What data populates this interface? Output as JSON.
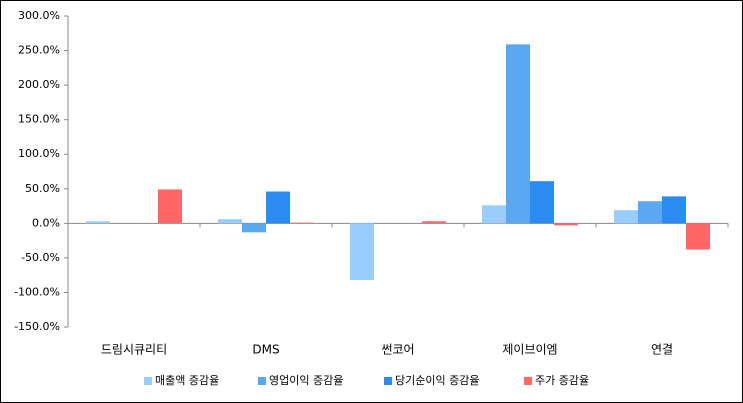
{
  "chart_data": {
    "type": "bar",
    "categories": [
      "드림시큐리티",
      "DMS",
      "썬코어",
      "제이브이엠",
      "연결"
    ],
    "series": [
      {
        "name": "매출액 증감율",
        "color": "#99ccff",
        "values": [
          3,
          6,
          -82,
          26,
          19
        ]
      },
      {
        "name": "영업이익 증감율",
        "color": "#5ba8f2",
        "values": [
          null,
          -13,
          null,
          259,
          32
        ]
      },
      {
        "name": "당기순이익 증감율",
        "color": "#2a8cf0",
        "values": [
          null,
          46,
          null,
          61,
          39
        ]
      },
      {
        "name": "주가 증감율",
        "color": "#ff6666",
        "values": [
          49,
          1,
          3,
          -3,
          -38
        ]
      }
    ],
    "ylim": [
      -150,
      300
    ],
    "yticks": [
      {
        "value": -150,
        "label": "-150.0%"
      },
      {
        "value": -100,
        "label": "-100.0%"
      },
      {
        "value": -50,
        "label": "-50.0%"
      },
      {
        "value": 0,
        "label": "0.0%"
      },
      {
        "value": 50,
        "label": "50.0%"
      },
      {
        "value": 100,
        "label": "100.0%"
      },
      {
        "value": 150,
        "label": "150.0%"
      },
      {
        "value": 200,
        "label": "200.0%"
      },
      {
        "value": 250,
        "label": "250.0%"
      },
      {
        "value": 300,
        "label": "300.0%"
      }
    ],
    "grid": false,
    "legend": "bottom"
  }
}
